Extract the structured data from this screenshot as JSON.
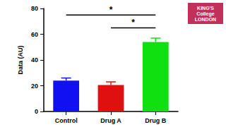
{
  "chart_data": {
    "type": "bar",
    "categories": [
      "Control",
      "Drug A",
      "Drug B"
    ],
    "values": [
      24,
      20.5,
      54
    ],
    "errors": [
      2,
      2.5,
      3
    ],
    "colors": [
      "#1010f0",
      "#e01010",
      "#10e010"
    ],
    "y_label": "Data (AU)",
    "ylim": [
      0,
      80
    ],
    "yticks": [
      0,
      20,
      40,
      60,
      80
    ],
    "grid": false,
    "significance": [
      {
        "from": "Control",
        "to": "Drug B",
        "y": 75,
        "label": "*"
      },
      {
        "from": "Drug A",
        "to": "Drug B",
        "y": 65,
        "label": "*"
      }
    ],
    "annotations": [
      "KING'S College LONDON"
    ]
  }
}
